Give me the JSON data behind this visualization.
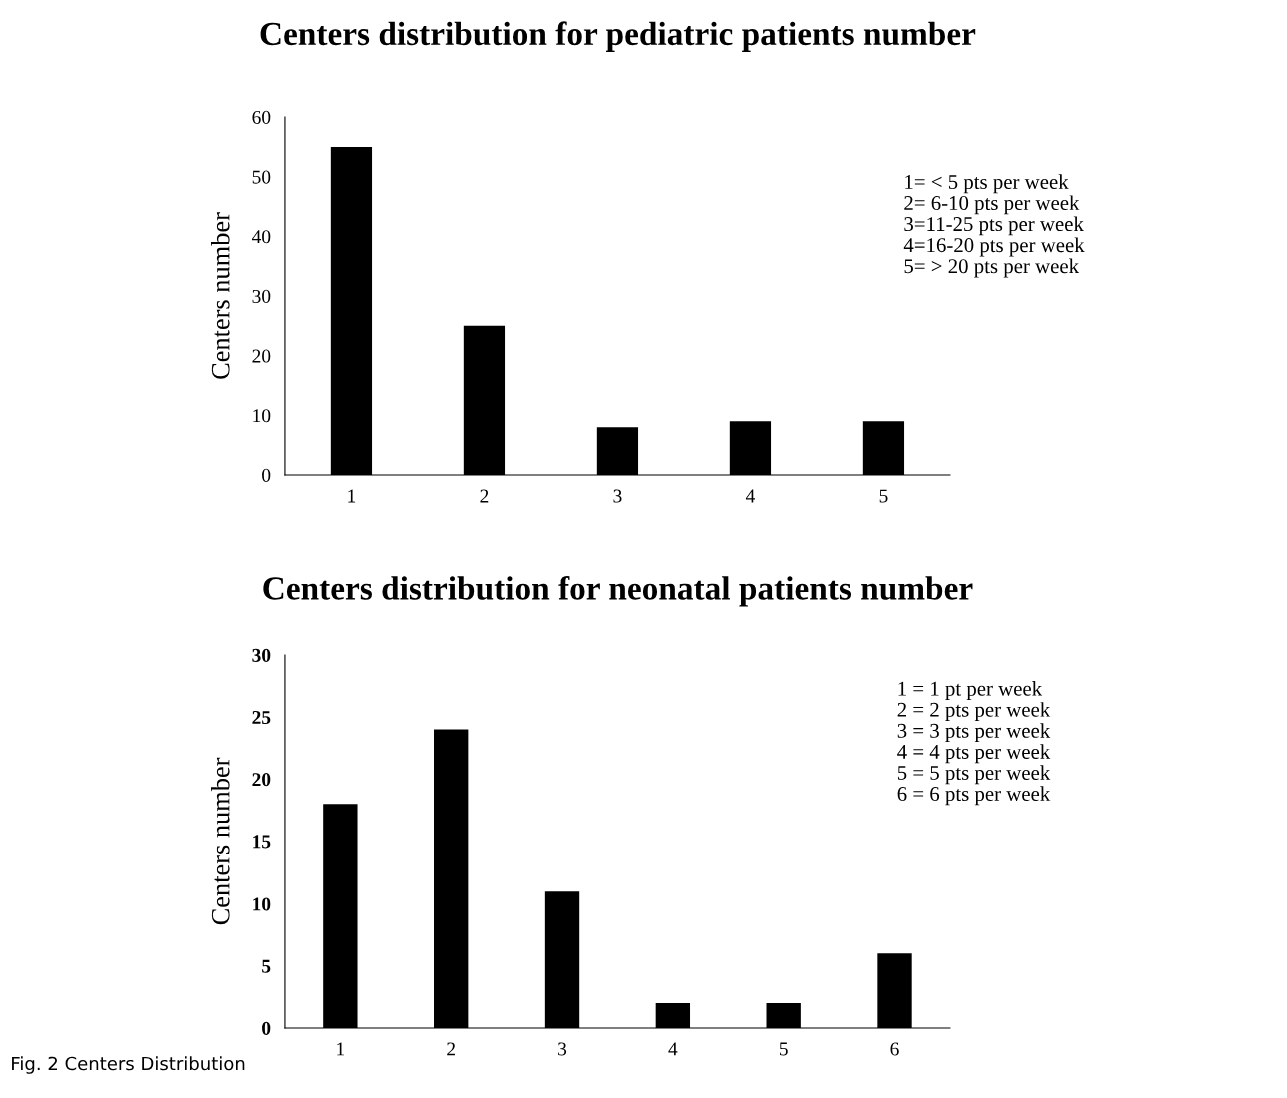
{
  "chart_data": [
    {
      "type": "bar",
      "title": "Centers distribution for pediatric patients number",
      "ylabel": "Centers number",
      "categories": [
        "1",
        "2",
        "3",
        "4",
        "5"
      ],
      "values": [
        55,
        25,
        8,
        9,
        9
      ],
      "color": "#000000",
      "ylim": [
        0,
        60
      ],
      "yticks": [
        0,
        10,
        20,
        30,
        40,
        50,
        60
      ],
      "grid": false,
      "legend": false,
      "annotations": [
        "1= < 5 pts per week\n2= 6-10 pts per week\n3=11-25 pts per week\n4=16-20 pts per week\n5= > 20 pts per week"
      ]
    },
    {
      "type": "bar",
      "title": "Centers distribution for neonatal patients number",
      "ylabel": "Centers number",
      "categories": [
        "1",
        "2",
        "3",
        "4",
        "5",
        "6"
      ],
      "values": [
        18,
        24,
        11,
        2,
        2,
        6
      ],
      "color": "#000000",
      "ylim": [
        0,
        30
      ],
      "yticks": [
        0,
        5,
        10,
        15,
        20,
        25,
        30
      ],
      "grid": false,
      "legend": false,
      "annotations": [
        "1 = 1 pt per week\n2 = 2 pts per week\n3 = 3 pts per week\n4 = 4 pts per week\n5 = 5 pts per week\n6 = 6 pts per week",
        "Fig. 2 Centers Distribution"
      ]
    }
  ]
}
